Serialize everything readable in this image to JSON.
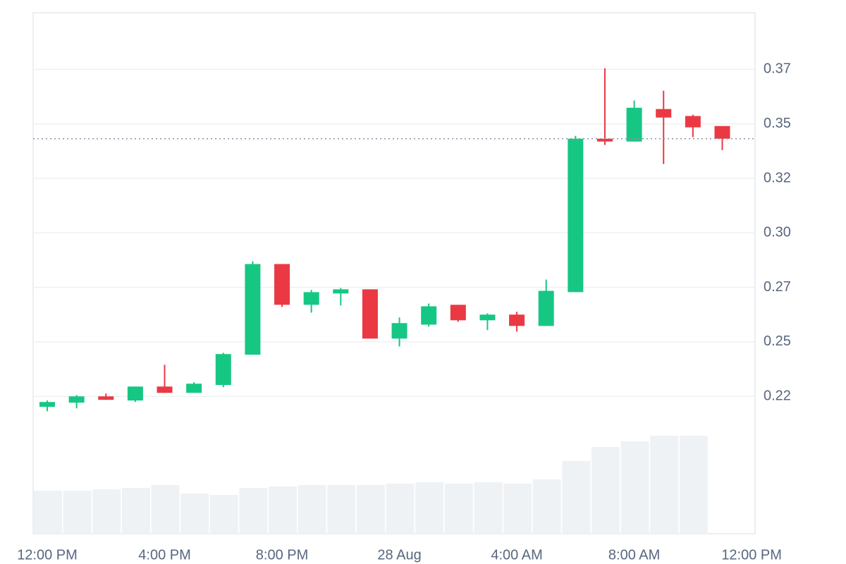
{
  "chart_data": {
    "type": "candlestick",
    "categories": [
      "12:00 PM",
      null,
      null,
      null,
      "4:00 PM",
      null,
      null,
      null,
      "8:00 PM",
      null,
      null,
      null,
      "28 Aug",
      null,
      null,
      null,
      "4:00 AM",
      null,
      null,
      null,
      "8:00 AM",
      null,
      null,
      null,
      "12:00 PM"
    ],
    "open": [
      0.2202,
      0.2221,
      0.225,
      0.2231,
      0.2295,
      0.2266,
      0.2302,
      0.2441,
      0.2857,
      0.267,
      0.2722,
      0.2741,
      0.2515,
      0.2579,
      0.267,
      0.2599,
      0.2625,
      0.2573,
      0.2728,
      0.3432,
      0.3419,
      0.3568,
      0.3536,
      0.349,
      null
    ],
    "high": [
      0.2231,
      0.2256,
      0.2263,
      0.2295,
      0.2395,
      0.2315,
      0.245,
      0.287,
      0.2857,
      0.2738,
      0.2747,
      0.2741,
      0.2612,
      0.2676,
      0.267,
      0.2631,
      0.2638,
      0.2786,
      0.3445,
      0.3755,
      0.3607,
      0.3652,
      0.3542,
      0.349,
      null
    ],
    "low": [
      0.2182,
      0.2195,
      0.2234,
      0.2224,
      0.2266,
      0.2266,
      0.2292,
      0.2441,
      0.266,
      0.2634,
      0.2667,
      0.2515,
      0.2479,
      0.257,
      0.2592,
      0.2554,
      0.2547,
      0.2573,
      0.2728,
      0.3403,
      0.3419,
      0.3316,
      0.3439,
      0.338,
      null
    ],
    "close": [
      0.2224,
      0.225,
      0.2234,
      0.2295,
      0.2266,
      0.2308,
      0.2444,
      0.2857,
      0.267,
      0.2728,
      0.2741,
      0.2515,
      0.2586,
      0.2663,
      0.2599,
      0.2625,
      0.2573,
      0.2734,
      0.3432,
      0.3419,
      0.3574,
      0.3529,
      0.3484,
      0.3432,
      null
    ],
    "volume": [
      61,
      61,
      63,
      65,
      69,
      57,
      55,
      65,
      67,
      69,
      69,
      69,
      71,
      73,
      71,
      73,
      71,
      77,
      103,
      123,
      131,
      139,
      139,
      null,
      null
    ],
    "up_color": "#16c784",
    "down_color": "#ea3943",
    "volume_color": "#eff2f5",
    "ylim": [
      0.162,
      0.401
    ],
    "yticks": [
      {
        "value": 0.225,
        "label": "0.22"
      },
      {
        "value": 0.25,
        "label": "0.25"
      },
      {
        "value": 0.275,
        "label": "0.27"
      },
      {
        "value": 0.3,
        "label": "0.30"
      },
      {
        "value": 0.325,
        "label": "0.32"
      },
      {
        "value": 0.35,
        "label": "0.35"
      },
      {
        "value": 0.375,
        "label": "0.37"
      }
    ],
    "grid": true,
    "last_price_line": true
  }
}
